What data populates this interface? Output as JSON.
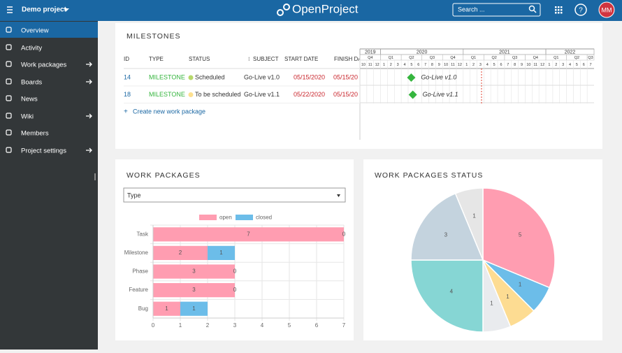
{
  "header": {
    "project": "Demo project",
    "logo": "OpenProject",
    "search": "Search ...",
    "avatar": "MM"
  },
  "sidebar": {
    "items": [
      "Overview",
      "Activity",
      "Work packages",
      "Boards",
      "News",
      "Wiki",
      "Members",
      "Project settings"
    ]
  },
  "milestones": {
    "title": "MILESTONES",
    "columns": [
      "ID",
      "TYPE",
      "STATUS",
      "SUBJECT",
      "START DATE",
      "FINISH DA"
    ],
    "rows": [
      [
        "14",
        "MILESTONE",
        "Scheduled",
        "Go-Live v1.0",
        "05/15/2020",
        "05/15/20"
      ],
      [
        "18",
        "MILESTONE",
        "To be scheduled",
        "Go-Live v1.1",
        "05/22/2020",
        "05/15/20"
      ]
    ],
    "create": "Create new work package",
    "gantt": {
      "years": [
        {
          "label": "2019",
          "quarters": [
            "Q4"
          ],
          "months": [
            10,
            11,
            12
          ]
        },
        {
          "label": "2020",
          "quarters": [
            "Q1",
            "Q2",
            "Q3",
            "Q4"
          ],
          "months": [
            1,
            2,
            3,
            4,
            5,
            6,
            7,
            8,
            9,
            10,
            11,
            12
          ]
        },
        {
          "label": "2021",
          "quarters": [
            "Q1",
            "Q2",
            "Q3",
            "Q4"
          ],
          "months": [
            1,
            2,
            3,
            4,
            5,
            6,
            7,
            8,
            9,
            10,
            11,
            12
          ]
        },
        {
          "label": "2022",
          "quarters": [
            "Q1",
            "Q2",
            "Q3"
          ],
          "months": [
            1,
            2,
            3,
            4,
            5,
            6,
            7
          ]
        }
      ]
    }
  },
  "widgets": {
    "work_packages": {
      "title": "WORK PACKAGES",
      "select": "Type"
    },
    "status": {
      "title": "WORK PACKAGES STATUS"
    }
  },
  "chart_data": [
    {
      "type": "hbar",
      "categories": [
        "Task",
        "Milestone",
        "Phase",
        "Feature",
        "Bug"
      ],
      "series": [
        {
          "name": "open",
          "color": "#ff9db1",
          "values": [
            7,
            2,
            3,
            3,
            1
          ]
        },
        {
          "name": "closed",
          "color": "#6cbde9",
          "values": [
            0,
            1,
            0,
            0,
            1
          ]
        }
      ],
      "xlim": [
        0,
        7
      ],
      "xticks": [
        0,
        1,
        2,
        3,
        4,
        5,
        6,
        7
      ],
      "grid": true,
      "legend": "top"
    },
    {
      "type": "pie",
      "values": [
        5,
        1,
        1,
        1,
        4,
        3,
        1
      ],
      "colors": [
        "#ff9db1",
        "#6cbde9",
        "#fddc92",
        "#e9ebee",
        "#86d6d4",
        "#c4d3de",
        "#e6e6e6"
      ]
    }
  ]
}
